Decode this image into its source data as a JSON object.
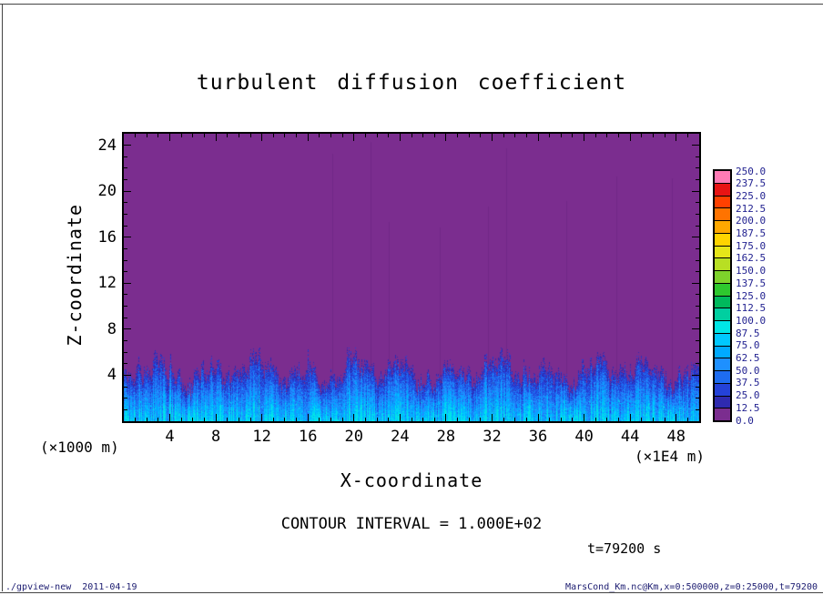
{
  "title": "turbulent diffusion coefficient",
  "x_axis": {
    "label": "X-coordinate",
    "unit": "(×1E4 m)",
    "tick_labels": [
      "4",
      "8",
      "12",
      "16",
      "20",
      "24",
      "28",
      "32",
      "36",
      "40",
      "44",
      "48"
    ]
  },
  "y_axis": {
    "label": "Z-coordinate",
    "unit": "(×1000 m)",
    "tick_labels": [
      "4",
      "8",
      "12",
      "16",
      "20",
      "24"
    ]
  },
  "colorbar": {
    "tick_labels": [
      "250.0",
      "237.5",
      "225.0",
      "212.5",
      "200.0",
      "187.5",
      "175.0",
      "162.5",
      "150.0",
      "137.5",
      "125.0",
      "112.5",
      "100.0",
      "87.5",
      "75.0",
      "62.5",
      "50.0",
      "37.5",
      "25.0",
      "12.5",
      "0.0"
    ],
    "label_color": "#1f1f8f"
  },
  "annotations": {
    "contour_interval": "CONTOUR INTERVAL = 1.000E+02",
    "time": "t=79200 s"
  },
  "footer": {
    "left": "./gpview-new  2011-04-19",
    "right": "MarsCond_Km.nc@Km,x=0:500000,z=0:25000,t=79200"
  },
  "chart_data": {
    "type": "heatmap",
    "title": "turbulent diffusion coefficient",
    "xlabel": "X-coordinate (×1E4 m)",
    "ylabel": "Z-coordinate (×1000 m)",
    "xlim": [
      0,
      50
    ],
    "ylim": [
      0,
      25
    ],
    "x_major_ticks": [
      4,
      8,
      12,
      16,
      20,
      24,
      28,
      32,
      36,
      40,
      44,
      48
    ],
    "y_major_ticks": [
      4,
      8,
      12,
      16,
      20,
      24
    ],
    "levels_min": 0,
    "levels_max": 250,
    "level_step": 12.5,
    "contour_interval": 100,
    "time_s": 79200,
    "colors": [
      "#7b2d8f",
      "#2f2aaf",
      "#2442d9",
      "#1e6cf0",
      "#1e90ff",
      "#00aaff",
      "#00c8ff",
      "#00e6e6",
      "#00cfa0",
      "#00b95c",
      "#2ec82e",
      "#7ed32b",
      "#b8df23",
      "#e6e619",
      "#ffd400",
      "#ffa800",
      "#ff7300",
      "#ff4000",
      "#e81414",
      "#ff7bb5"
    ],
    "field_summary": "Background Km in the 0-12.5 bin (purple) everywhere above z≈6 (×1000 m); turbulent boundary layer below z≈5-6 (×1000 m) with narrow plume-like structures of Km ≈ 25-150 (blue to cyan), strongest near the surface",
    "render": {
      "seed": 20110419,
      "layer_top_mean": 4.4,
      "layer_top_var": 1.5,
      "layer_top_max": 6.4,
      "faint_streaks": 9
    }
  }
}
